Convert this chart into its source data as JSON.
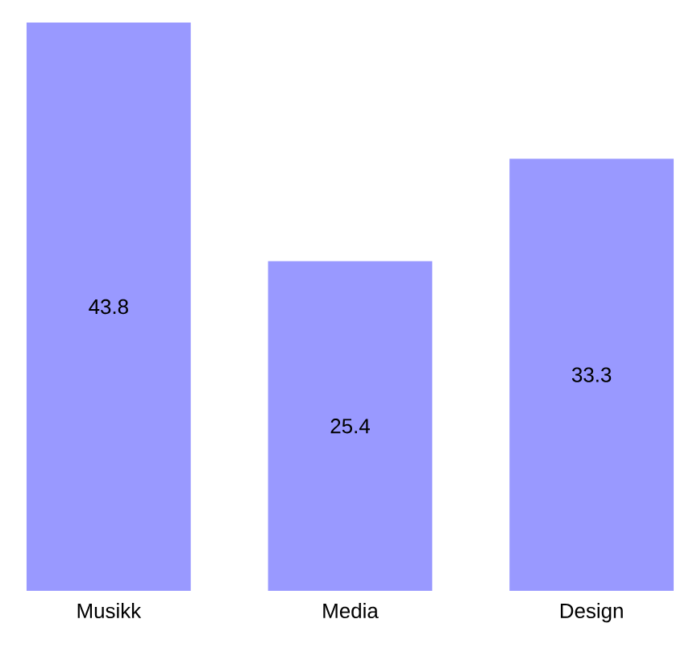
{
  "chart_data": {
    "type": "bar",
    "categories": [
      "Musikk",
      "Media",
      "Design"
    ],
    "values": [
      43.8,
      25.4,
      33.3
    ],
    "color": "#9999ff",
    "data_labels": true,
    "grid": false
  }
}
